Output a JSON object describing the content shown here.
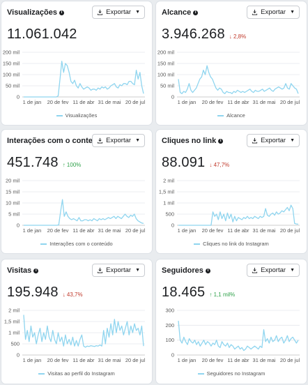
{
  "ui": {
    "export_label": "Exportar",
    "info_glyph": "i",
    "series_color": "#8fd5ef",
    "down_color": "#c0392b",
    "up_color": "#31a24c"
  },
  "cards": [
    {
      "title": "Visualizações",
      "value": "11.061.042",
      "change": "",
      "change_dir": "",
      "legend": "Visualizações"
    },
    {
      "title": "Alcance",
      "value": "3.946.268",
      "change": "↓ 2,8%",
      "change_dir": "down",
      "legend": "Alcance"
    },
    {
      "title": "Interações com o conteúdo",
      "value": "451.748",
      "change": "↑ 100%",
      "change_dir": "up",
      "legend": "Interações com o conteúdo"
    },
    {
      "title": "Cliques no link",
      "value": "88.091",
      "change": "↓ 47,7%",
      "change_dir": "down",
      "legend": "Cliques no link do Instagram"
    },
    {
      "title": "Visitas",
      "value": "195.948",
      "change": "↓ 43,7%",
      "change_dir": "down",
      "legend": "Visitas ao perfil do Instagram"
    },
    {
      "title": "Seguidores",
      "value": "18.465",
      "change": "↑ 1,1 mil%",
      "change_dir": "up",
      "legend": "Seguidores no Instagram"
    }
  ],
  "chart_data": [
    {
      "type": "line",
      "x_ticks": [
        "1 de jan",
        "20 de fev",
        "11 de abr",
        "31 de mai",
        "20 de jul"
      ],
      "y_ticks": [
        "0",
        "50 mil",
        "100 mil",
        "150 mil",
        "200 mil"
      ],
      "ylim": [
        0,
        200
      ],
      "series": [
        {
          "name": "Visualizações",
          "values": [
            0,
            0,
            0,
            0,
            0,
            0,
            0,
            0,
            0,
            0,
            0,
            0,
            0,
            0,
            0,
            0,
            0,
            0,
            0,
            5,
            80,
            160,
            110,
            150,
            140,
            110,
            70,
            60,
            75,
            50,
            40,
            60,
            45,
            35,
            40,
            45,
            40,
            30,
            35,
            35,
            30,
            40,
            35,
            45,
            40,
            45,
            35,
            40,
            50,
            55,
            60,
            45,
            40,
            55,
            50,
            60,
            60,
            55,
            70,
            70,
            60,
            55,
            120,
            80,
            110,
            50,
            15
          ]
        }
      ]
    },
    {
      "type": "line",
      "x_ticks": [
        "1 de jan",
        "20 de fev",
        "11 de abr",
        "31 de mai",
        "20 de jul"
      ],
      "y_ticks": [
        "0",
        "50 mil",
        "100 mil",
        "150 mil",
        "200 mil"
      ],
      "ylim": [
        0,
        200
      ],
      "series": [
        {
          "name": "Alcance",
          "values": [
            80,
            20,
            15,
            25,
            20,
            35,
            60,
            30,
            20,
            30,
            40,
            60,
            80,
            90,
            120,
            100,
            140,
            110,
            90,
            80,
            60,
            40,
            30,
            40,
            35,
            20,
            15,
            25,
            20,
            20,
            15,
            25,
            20,
            30,
            25,
            20,
            25,
            20,
            25,
            30,
            35,
            25,
            20,
            30,
            25,
            25,
            30,
            35,
            25,
            30,
            35,
            40,
            30,
            25,
            35,
            40,
            45,
            40,
            35,
            40,
            60,
            40,
            35,
            60,
            50,
            40,
            35,
            15
          ]
        }
      ]
    },
    {
      "type": "line",
      "x_ticks": [
        "1 de jan",
        "20 de fev",
        "11 de abr",
        "31 de mai",
        "20 de jul"
      ],
      "y_ticks": [
        "0",
        "5 mil",
        "10 mil",
        "15 mil",
        "20 mil"
      ],
      "ylim": [
        0,
        20
      ],
      "series": [
        {
          "name": "Interações com o conteúdo",
          "values": [
            0,
            0,
            0,
            0,
            0,
            0,
            0,
            0,
            0,
            0,
            0,
            0,
            0,
            0,
            0,
            0,
            0,
            0,
            0,
            0.2,
            6,
            11.5,
            4,
            6,
            4,
            3,
            2.5,
            3,
            2.5,
            2,
            3.5,
            2,
            2,
            2.5,
            2.5,
            2,
            2.5,
            2,
            3,
            2.5,
            2,
            3,
            2.5,
            3,
            2.5,
            3,
            3.5,
            3,
            3.5,
            4,
            3,
            4,
            3.5,
            3,
            4,
            5,
            4,
            3.5,
            4.5,
            4,
            5,
            3,
            2,
            1.5,
            1,
            0.8
          ]
        }
      ]
    },
    {
      "type": "line",
      "x_ticks": [
        "1 de jan",
        "20 de fev",
        "11 de abr",
        "31 de mai",
        "20 de jul"
      ],
      "y_ticks": [
        "0",
        "500",
        "1 mil",
        "1,5 mil",
        "2 mil"
      ],
      "ylim": [
        0,
        2000
      ],
      "series": [
        {
          "name": "Cliques no link do Instagram",
          "values": [
            0,
            0,
            0,
            0,
            0,
            0,
            0,
            0,
            0,
            0,
            0,
            0,
            0,
            0,
            0,
            0,
            0,
            0,
            0,
            600,
            400,
            500,
            250,
            600,
            300,
            500,
            200,
            550,
            300,
            500,
            150,
            400,
            200,
            350,
            300,
            250,
            350,
            300,
            400,
            300,
            350,
            300,
            400,
            350,
            300,
            400,
            350,
            400,
            750,
            450,
            400,
            500,
            550,
            450,
            600,
            500,
            550,
            650,
            600,
            700,
            800,
            650,
            900,
            750,
            80,
            60,
            50
          ]
        }
      ]
    },
    {
      "type": "line",
      "x_ticks": [
        "1 de jan",
        "20 de fev",
        "11 de abr",
        "31 de mai",
        "20 de jul"
      ],
      "y_ticks": [
        "0",
        "500",
        "1 mil",
        "1,5 mil",
        "2 mil"
      ],
      "ylim": [
        0,
        2000
      ],
      "series": [
        {
          "name": "Visitas ao perfil do Instagram",
          "values": [
            1800,
            700,
            1100,
            600,
            1300,
            800,
            1000,
            500,
            900,
            1200,
            600,
            1000,
            700,
            1300,
            800,
            600,
            1100,
            700,
            500,
            1000,
            600,
            800,
            400,
            900,
            500,
            700,
            450,
            800,
            400,
            650,
            400,
            700,
            900,
            400,
            350,
            400,
            380,
            420,
            400,
            380,
            420,
            400,
            450,
            400,
            1100,
            500,
            1200,
            800,
            1400,
            900,
            1600,
            1000,
            1500,
            1100,
            1300,
            900,
            1200,
            1500,
            900,
            1300,
            1000,
            1400,
            1100,
            1200,
            900,
            1300,
            400
          ]
        }
      ]
    },
    {
      "type": "line",
      "x_ticks": [
        "1 de jan",
        "20 de fev",
        "11 de abr",
        "31 de mai",
        "20 de jul"
      ],
      "y_ticks": [
        "0",
        "100",
        "200",
        "300"
      ],
      "ylim": [
        0,
        300
      ],
      "series": [
        {
          "name": "Seguidores no Instagram",
          "values": [
            230,
            100,
            80,
            120,
            90,
            70,
            110,
            90,
            80,
            100,
            70,
            90,
            60,
            80,
            100,
            70,
            90,
            80,
            60,
            80,
            70,
            100,
            60,
            50,
            90,
            70,
            60,
            80,
            50,
            70,
            60,
            40,
            50,
            60,
            40,
            50,
            30,
            40,
            60,
            50,
            40,
            50,
            60,
            50,
            40,
            60,
            50,
            170,
            90,
            110,
            80,
            120,
            90,
            100,
            130,
            90,
            110,
            120,
            80,
            100,
            130,
            90,
            110,
            120,
            100,
            80,
            100
          ]
        }
      ]
    }
  ]
}
